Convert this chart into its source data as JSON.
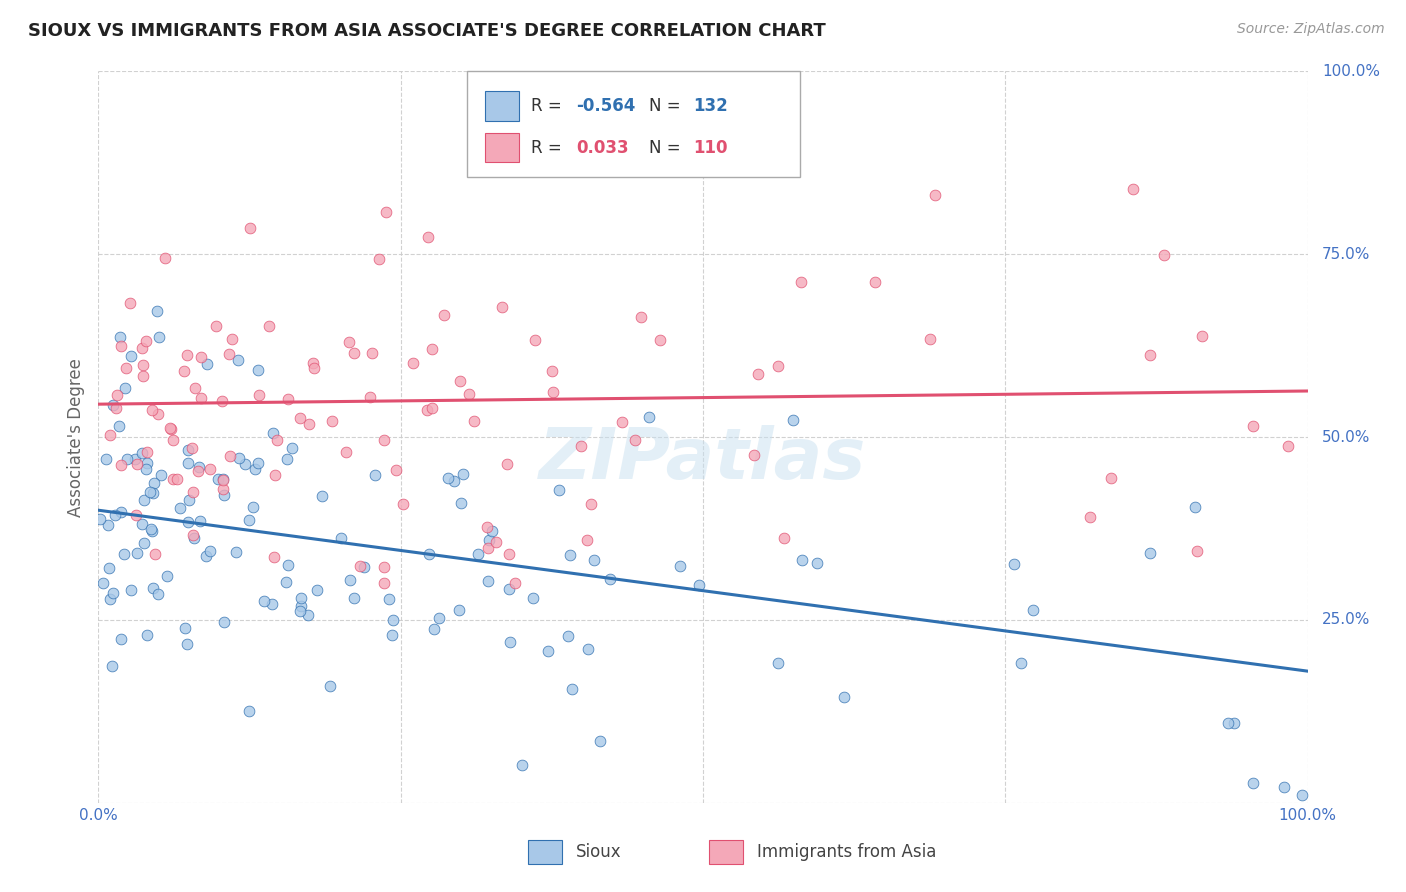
{
  "title": "SIOUX VS IMMIGRANTS FROM ASIA ASSOCIATE'S DEGREE CORRELATION CHART",
  "source": "Source: ZipAtlas.com",
  "ylabel": "Associate's Degree",
  "legend_label_blue": "Sioux",
  "legend_label_pink": "Immigrants from Asia",
  "blue_color": "#A8C8E8",
  "pink_color": "#F4A8B8",
  "blue_line_color": "#3070B0",
  "pink_line_color": "#E05070",
  "blue_r": -0.564,
  "pink_r": 0.033,
  "blue_n": 132,
  "pink_n": 110,
  "watermark_text": "ZIPatlas",
  "background_color": "#ffffff",
  "grid_color": "#cccccc",
  "title_color": "#222222",
  "axis_label_color": "#4472C4",
  "right_ytick_color": "#4472C4",
  "sioux_seed": 101,
  "asia_seed": 202
}
